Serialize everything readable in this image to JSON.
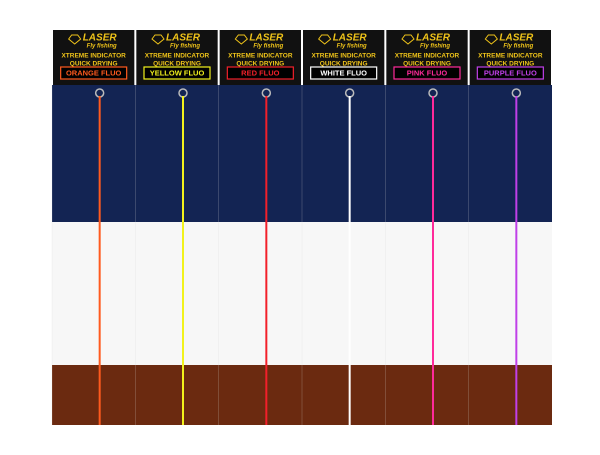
{
  "products": [
    {
      "brand": "LASER",
      "subtitle": "Fly fishing",
      "line1": "XTREME INDICATOR",
      "line2": "QUICK DRYING",
      "label": "ORANGE FLUO",
      "color": "#ff5a1e"
    },
    {
      "brand": "LASER",
      "subtitle": "Fly fishing",
      "line1": "XTREME INDICATOR",
      "line2": "QUICK DRYING",
      "label": "YELLOW FLUO",
      "color": "#f2f21c"
    },
    {
      "brand": "LASER",
      "subtitle": "Fly fishing",
      "line1": "XTREME INDICATOR",
      "line2": "QUICK DRYING",
      "label": "RED FLUO",
      "color": "#f2202a"
    },
    {
      "brand": "LASER",
      "subtitle": "Fly fishing",
      "line1": "XTREME INDICATOR",
      "line2": "QUICK DRYING",
      "label": "WHITE FLUO",
      "color": "#ffffff"
    },
    {
      "brand": "LASER",
      "subtitle": "Fly fishing",
      "line1": "XTREME INDICATOR",
      "line2": "QUICK DRYING",
      "label": "PINK FLUO",
      "color": "#ff2a9a"
    },
    {
      "brand": "LASER",
      "subtitle": "Fly fishing",
      "line1": "XTREME INDICATOR",
      "line2": "QUICK DRYING",
      "label": "PURPLE FLUO",
      "color": "#c040e8"
    }
  ]
}
